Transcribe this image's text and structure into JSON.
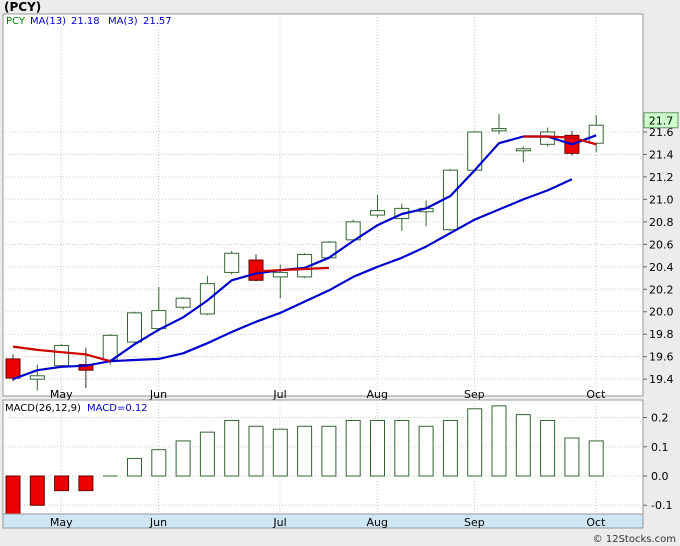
{
  "chart_data": [
    {
      "type": "candlestick",
      "title": "(PCY)",
      "ticker": "PCY",
      "legend": [
        {
          "label": "PCY",
          "color": "#008000"
        },
        {
          "label": "MA(13)",
          "value": "21.18",
          "color": "#0000cc"
        },
        {
          "label": "MA(3)",
          "value": "21.57",
          "color": "#0000cc"
        }
      ],
      "last_price_label": "21.7",
      "ylim": [
        19.25,
        22.65
      ],
      "y_ticks": [
        "19.4",
        "19.6",
        "19.8",
        "20.0",
        "20.2",
        "20.4",
        "20.6",
        "20.8",
        "21.0",
        "21.2",
        "21.4",
        "21.6"
      ],
      "x_ticks": [
        {
          "label": "May",
          "index": 1
        },
        {
          "label": "Jun",
          "index": 5
        },
        {
          "label": "Jul",
          "index": 10
        },
        {
          "label": "Aug",
          "index": 14
        },
        {
          "label": "Sep",
          "index": 18
        },
        {
          "label": "Oct",
          "index": 23
        }
      ],
      "candles": [
        {
          "o": 19.58,
          "h": 19.62,
          "l": 19.38,
          "c": 19.41
        },
        {
          "o": 19.4,
          "h": 19.53,
          "l": 19.3,
          "c": 19.43
        },
        {
          "o": 19.52,
          "h": 19.71,
          "l": 19.5,
          "c": 19.7
        },
        {
          "o": 19.53,
          "h": 19.68,
          "l": 19.32,
          "c": 19.48
        },
        {
          "o": 19.57,
          "h": 19.8,
          "l": 19.53,
          "c": 19.79
        },
        {
          "o": 19.73,
          "h": 20.0,
          "l": 19.7,
          "c": 19.99
        },
        {
          "o": 19.85,
          "h": 20.22,
          "l": 19.83,
          "c": 20.01
        },
        {
          "o": 20.04,
          "h": 20.13,
          "l": 20.02,
          "c": 20.12
        },
        {
          "o": 19.98,
          "h": 20.32,
          "l": 19.97,
          "c": 20.25
        },
        {
          "o": 20.35,
          "h": 20.54,
          "l": 20.33,
          "c": 20.52
        },
        {
          "o": 20.46,
          "h": 20.51,
          "l": 20.27,
          "c": 20.28
        },
        {
          "o": 20.31,
          "h": 20.42,
          "l": 20.12,
          "c": 20.35
        },
        {
          "o": 20.31,
          "h": 20.52,
          "l": 20.3,
          "c": 20.51
        },
        {
          "o": 20.48,
          "h": 20.63,
          "l": 20.47,
          "c": 20.62
        },
        {
          "o": 20.64,
          "h": 20.82,
          "l": 20.63,
          "c": 20.8
        },
        {
          "o": 20.86,
          "h": 21.04,
          "l": 20.84,
          "c": 20.9
        },
        {
          "o": 20.83,
          "h": 20.96,
          "l": 20.72,
          "c": 20.92
        },
        {
          "o": 20.89,
          "h": 20.99,
          "l": 20.76,
          "c": 20.92
        },
        {
          "o": 20.73,
          "h": 21.27,
          "l": 20.72,
          "c": 21.26
        },
        {
          "o": 21.26,
          "h": 21.61,
          "l": 21.24,
          "c": 21.6
        },
        {
          "o": 21.61,
          "h": 21.76,
          "l": 21.58,
          "c": 21.63
        },
        {
          "o": 21.45,
          "h": 21.47,
          "l": 21.33,
          "c": 21.45
        },
        {
          "o": 21.49,
          "h": 21.64,
          "l": 21.47,
          "c": 21.6
        },
        {
          "o": 21.57,
          "h": 21.61,
          "l": 21.39,
          "c": 21.41
        },
        {
          "o": 21.5,
          "h": 21.75,
          "l": 21.42,
          "c": 21.66
        }
      ],
      "series": [
        {
          "name": "MA(3)",
          "color": "#0000cc",
          "start": 0,
          "values": [
            19.4,
            19.48,
            19.51,
            19.52,
            19.56,
            19.71,
            19.84,
            19.95,
            20.1,
            20.28,
            20.34,
            20.37,
            20.39,
            20.48,
            20.63,
            20.77,
            20.87,
            20.92,
            21.03,
            21.26,
            21.5,
            21.56,
            21.56,
            21.49,
            21.57
          ]
        },
        {
          "name": "MA(13)",
          "color": "#0000cc",
          "start": 4,
          "values": [
            19.56,
            19.57,
            19.58,
            19.63,
            19.72,
            19.82,
            19.91,
            19.99,
            20.09,
            20.19,
            20.31,
            20.4,
            20.48,
            20.58,
            20.7,
            20.82,
            20.91,
            21.0,
            21.08,
            21.18
          ]
        },
        {
          "name": "Declining",
          "color": "#cc0000",
          "start": 0,
          "values": [
            19.69,
            19.66,
            19.64,
            19.62,
            19.56
          ]
        },
        {
          "name": "Declining",
          "color": "#cc0000",
          "start": 10,
          "values": [
            20.36,
            20.37,
            20.38,
            20.39
          ]
        },
        {
          "name": "Declining",
          "color": "#cc0000",
          "start": 21,
          "values": [
            21.56,
            21.56,
            21.55,
            21.49
          ]
        }
      ]
    },
    {
      "type": "bar",
      "title": "MACD(26,12,9)",
      "legend": [
        {
          "label": "MACD(26,12,9)",
          "color": "#000000"
        },
        {
          "label": "MACD=0.12",
          "color": "#0000cc"
        }
      ],
      "ylim": [
        -0.13,
        0.26
      ],
      "y_ticks": [
        "0.2",
        "0.1",
        "0.0",
        "-0.1"
      ],
      "x_ticks": [
        {
          "label": "May",
          "index": 1
        },
        {
          "label": "Jun",
          "index": 5
        },
        {
          "label": "Jul",
          "index": 10
        },
        {
          "label": "Aug",
          "index": 14
        },
        {
          "label": "Sep",
          "index": 18
        },
        {
          "label": "Oct",
          "index": 23
        }
      ],
      "values": [
        -0.13,
        -0.1,
        -0.05,
        -0.05,
        0.0,
        0.06,
        0.09,
        0.12,
        0.15,
        0.19,
        0.17,
        0.16,
        0.17,
        0.17,
        0.19,
        0.19,
        0.19,
        0.17,
        0.19,
        0.23,
        0.24,
        0.21,
        0.19,
        0.13,
        0.12
      ]
    }
  ],
  "footer": "© 12Stocks.com"
}
